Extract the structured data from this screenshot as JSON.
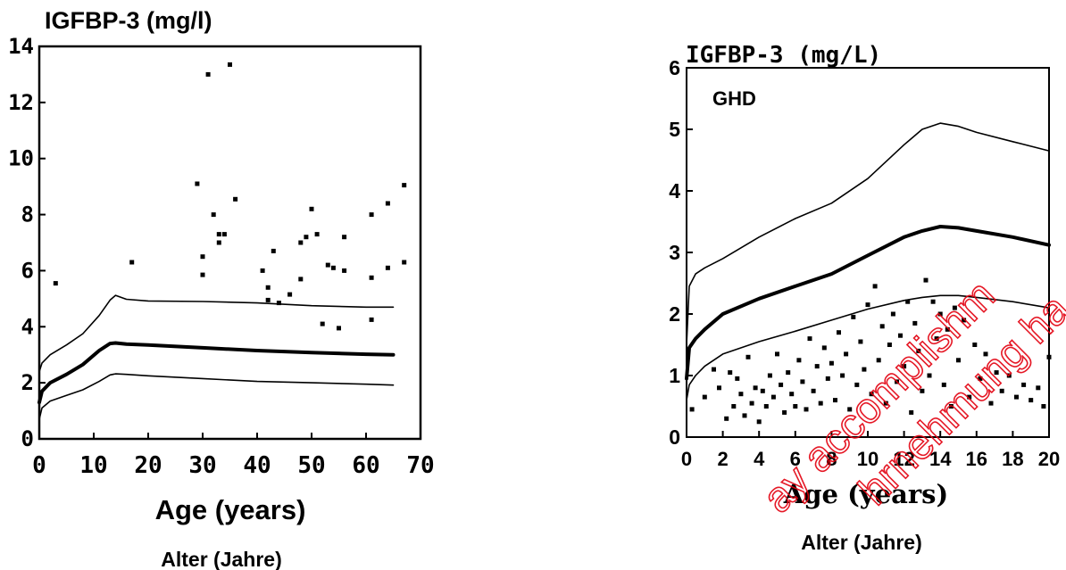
{
  "watermark": {
    "color": "#e3000f",
    "lines": [
      "ay accomplishm",
      "hrnehmung ha"
    ]
  },
  "chart_data": [
    {
      "type": "scatter",
      "title": "IGFBP-3 (mg/l)",
      "xlabel": "Age (years)",
      "xlabel_de": "Alter (Jahre)",
      "xlim": [
        0,
        70
      ],
      "ylim": [
        0,
        14
      ],
      "xticks": [
        0,
        10,
        20,
        30,
        40,
        50,
        60,
        70
      ],
      "yticks": [
        0,
        2,
        4,
        6,
        8,
        10,
        12,
        14
      ],
      "grid": false,
      "reference_curves": [
        {
          "style": "thin",
          "x": [
            0,
            0.5,
            2,
            5,
            8,
            11,
            13,
            14,
            16,
            20,
            30,
            40,
            50,
            60,
            65
          ],
          "y": [
            2.4,
            2.7,
            3.0,
            3.35,
            3.75,
            4.4,
            4.95,
            5.12,
            4.98,
            4.92,
            4.9,
            4.85,
            4.75,
            4.7,
            4.7
          ]
        },
        {
          "style": "bold",
          "x": [
            0,
            0.5,
            2,
            5,
            8,
            11,
            13,
            14,
            16,
            20,
            30,
            40,
            50,
            60,
            65
          ],
          "y": [
            1.3,
            1.7,
            2.0,
            2.3,
            2.65,
            3.15,
            3.4,
            3.42,
            3.38,
            3.35,
            3.25,
            3.15,
            3.08,
            3.02,
            3.0
          ]
        },
        {
          "style": "thin",
          "x": [
            0,
            0.5,
            2,
            5,
            8,
            11,
            13,
            14,
            16,
            20,
            30,
            40,
            50,
            60,
            65
          ],
          "y": [
            0.7,
            1.1,
            1.35,
            1.55,
            1.75,
            2.05,
            2.28,
            2.32,
            2.3,
            2.25,
            2.15,
            2.05,
            2.0,
            1.95,
            1.92
          ]
        }
      ],
      "points": [
        {
          "x": 3,
          "y": 5.55
        },
        {
          "x": 17,
          "y": 6.3
        },
        {
          "x": 29,
          "y": 9.1
        },
        {
          "x": 30,
          "y": 6.5
        },
        {
          "x": 30,
          "y": 5.85
        },
        {
          "x": 31,
          "y": 13.0
        },
        {
          "x": 32,
          "y": 8.0
        },
        {
          "x": 33,
          "y": 7.0
        },
        {
          "x": 33,
          "y": 7.3
        },
        {
          "x": 34,
          "y": 7.3
        },
        {
          "x": 35,
          "y": 13.35
        },
        {
          "x": 36,
          "y": 8.55
        },
        {
          "x": 41,
          "y": 6.0
        },
        {
          "x": 42,
          "y": 5.4
        },
        {
          "x": 42,
          "y": 4.95
        },
        {
          "x": 43,
          "y": 6.7
        },
        {
          "x": 44,
          "y": 4.85
        },
        {
          "x": 46,
          "y": 5.15
        },
        {
          "x": 48,
          "y": 7.0
        },
        {
          "x": 48,
          "y": 5.7
        },
        {
          "x": 49,
          "y": 7.2
        },
        {
          "x": 50,
          "y": 8.2
        },
        {
          "x": 51,
          "y": 7.3
        },
        {
          "x": 52,
          "y": 4.1
        },
        {
          "x": 53,
          "y": 6.2
        },
        {
          "x": 54,
          "y": 6.1
        },
        {
          "x": 55,
          "y": 3.95
        },
        {
          "x": 56,
          "y": 7.2
        },
        {
          "x": 56,
          "y": 6.0
        },
        {
          "x": 61,
          "y": 8.0
        },
        {
          "x": 61,
          "y": 5.75
        },
        {
          "x": 61,
          "y": 4.25
        },
        {
          "x": 64,
          "y": 8.4
        },
        {
          "x": 64,
          "y": 6.1
        },
        {
          "x": 67,
          "y": 9.05
        },
        {
          "x": 67,
          "y": 6.3
        }
      ]
    },
    {
      "type": "scatter",
      "title": "IGFBP-3 (mg/L)",
      "annotation": "GHD",
      "xlabel": "Age (years)",
      "xlabel_de": "Alter (Jahre)",
      "xlim": [
        0,
        20
      ],
      "ylim": [
        0,
        6
      ],
      "xticks": [
        0,
        2,
        4,
        6,
        8,
        10,
        12,
        14,
        16,
        18,
        20
      ],
      "yticks": [
        0,
        1,
        2,
        3,
        4,
        5,
        6
      ],
      "grid": false,
      "reference_curves": [
        {
          "style": "thin",
          "x": [
            0,
            0.15,
            0.5,
            1,
            2,
            4,
            6,
            8,
            10,
            12,
            13,
            14,
            15,
            16,
            18,
            20
          ],
          "y": [
            1.5,
            2.45,
            2.65,
            2.75,
            2.9,
            3.25,
            3.55,
            3.8,
            4.2,
            4.75,
            5.0,
            5.1,
            5.05,
            4.95,
            4.8,
            4.65
          ]
        },
        {
          "style": "bold",
          "x": [
            0,
            0.15,
            0.5,
            1,
            2,
            4,
            6,
            8,
            10,
            12,
            13,
            14,
            15,
            16,
            18,
            20
          ],
          "y": [
            0.95,
            1.45,
            1.6,
            1.75,
            2.0,
            2.25,
            2.45,
            2.65,
            2.95,
            3.25,
            3.35,
            3.42,
            3.4,
            3.35,
            3.25,
            3.12
          ]
        },
        {
          "style": "thin",
          "x": [
            0,
            0.15,
            0.5,
            1,
            2,
            4,
            6,
            8,
            10,
            12,
            13,
            14,
            15,
            16,
            18,
            20
          ],
          "y": [
            0.6,
            0.85,
            1.0,
            1.15,
            1.35,
            1.55,
            1.72,
            1.9,
            2.08,
            2.22,
            2.27,
            2.3,
            2.3,
            2.27,
            2.2,
            2.1
          ]
        }
      ],
      "points": [
        {
          "x": 0.3,
          "y": 0.45
        },
        {
          "x": 1.0,
          "y": 0.65
        },
        {
          "x": 1.5,
          "y": 1.1
        },
        {
          "x": 1.8,
          "y": 0.8
        },
        {
          "x": 2.2,
          "y": 0.3
        },
        {
          "x": 2.4,
          "y": 1.05
        },
        {
          "x": 2.6,
          "y": 0.5
        },
        {
          "x": 2.8,
          "y": 0.95
        },
        {
          "x": 3.0,
          "y": 0.7
        },
        {
          "x": 3.2,
          "y": 0.35
        },
        {
          "x": 3.4,
          "y": 1.3
        },
        {
          "x": 3.6,
          "y": 0.55
        },
        {
          "x": 3.8,
          "y": 0.8
        },
        {
          "x": 4.0,
          "y": 0.25
        },
        {
          "x": 4.2,
          "y": 0.75
        },
        {
          "x": 4.4,
          "y": 0.5
        },
        {
          "x": 4.6,
          "y": 1.0
        },
        {
          "x": 4.8,
          "y": 0.65
        },
        {
          "x": 5.0,
          "y": 1.35
        },
        {
          "x": 5.2,
          "y": 0.85
        },
        {
          "x": 5.4,
          "y": 0.4
        },
        {
          "x": 5.6,
          "y": 1.05
        },
        {
          "x": 5.8,
          "y": 0.7
        },
        {
          "x": 6.0,
          "y": 0.5
        },
        {
          "x": 6.2,
          "y": 1.25
        },
        {
          "x": 6.4,
          "y": 0.9
        },
        {
          "x": 6.6,
          "y": 0.45
        },
        {
          "x": 6.8,
          "y": 1.6
        },
        {
          "x": 7.0,
          "y": 0.75
        },
        {
          "x": 7.2,
          "y": 1.15
        },
        {
          "x": 7.4,
          "y": 0.55
        },
        {
          "x": 7.6,
          "y": 1.45
        },
        {
          "x": 7.8,
          "y": 0.95
        },
        {
          "x": 8.0,
          "y": 1.2
        },
        {
          "x": 8.2,
          "y": 0.6
        },
        {
          "x": 8.4,
          "y": 1.7
        },
        {
          "x": 8.6,
          "y": 1.0
        },
        {
          "x": 8.8,
          "y": 1.35
        },
        {
          "x": 9.0,
          "y": 0.45
        },
        {
          "x": 9.2,
          "y": 1.95
        },
        {
          "x": 9.4,
          "y": 0.85
        },
        {
          "x": 9.6,
          "y": 1.55
        },
        {
          "x": 9.8,
          "y": 1.1
        },
        {
          "x": 10.0,
          "y": 2.15
        },
        {
          "x": 10.2,
          "y": 0.7
        },
        {
          "x": 10.4,
          "y": 2.45
        },
        {
          "x": 10.6,
          "y": 1.25
        },
        {
          "x": 10.8,
          "y": 1.8
        },
        {
          "x": 11.0,
          "y": 0.55
        },
        {
          "x": 11.2,
          "y": 1.5
        },
        {
          "x": 11.4,
          "y": 2.0
        },
        {
          "x": 11.6,
          "y": 0.9
        },
        {
          "x": 11.8,
          "y": 1.65
        },
        {
          "x": 12.0,
          "y": 1.15
        },
        {
          "x": 12.2,
          "y": 2.2
        },
        {
          "x": 12.4,
          "y": 0.4
        },
        {
          "x": 12.6,
          "y": 1.85
        },
        {
          "x": 12.8,
          "y": 1.4
        },
        {
          "x": 13.0,
          "y": 0.75
        },
        {
          "x": 13.2,
          "y": 2.55
        },
        {
          "x": 13.4,
          "y": 1.0
        },
        {
          "x": 13.6,
          "y": 2.2
        },
        {
          "x": 13.8,
          "y": 1.6
        },
        {
          "x": 14.0,
          "y": 2.0
        },
        {
          "x": 14.2,
          "y": 0.85
        },
        {
          "x": 14.4,
          "y": 1.75
        },
        {
          "x": 14.6,
          "y": 0.5
        },
        {
          "x": 14.8,
          "y": 2.1
        },
        {
          "x": 15.0,
          "y": 1.25
        },
        {
          "x": 15.3,
          "y": 1.9
        },
        {
          "x": 15.6,
          "y": 0.65
        },
        {
          "x": 15.9,
          "y": 1.5
        },
        {
          "x": 16.2,
          "y": 0.95
        },
        {
          "x": 16.5,
          "y": 1.35
        },
        {
          "x": 16.8,
          "y": 0.55
        },
        {
          "x": 17.1,
          "y": 1.05
        },
        {
          "x": 17.4,
          "y": 0.75
        },
        {
          "x": 17.8,
          "y": 1.0
        },
        {
          "x": 18.2,
          "y": 0.65
        },
        {
          "x": 18.6,
          "y": 0.85
        },
        {
          "x": 19.0,
          "y": 0.6
        },
        {
          "x": 19.4,
          "y": 0.8
        },
        {
          "x": 19.7,
          "y": 0.5
        },
        {
          "x": 20.0,
          "y": 1.3
        }
      ]
    }
  ]
}
